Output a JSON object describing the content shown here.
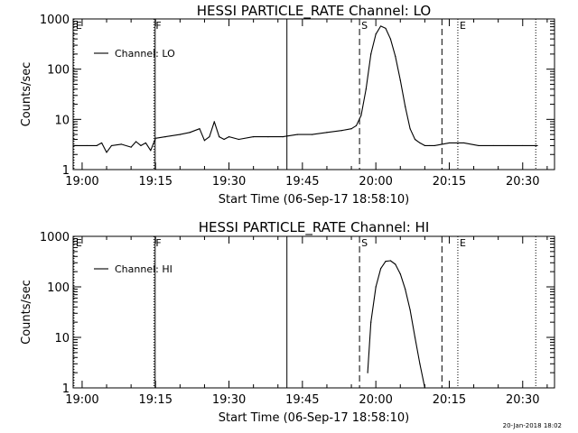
{
  "footer_timestamp": "20-Jan-2018 18:02",
  "chart_data": [
    {
      "type": "line",
      "title": "HESSI PARTICLE_RATE Channel: LO",
      "xlabel": "Start Time (06-Sep-17 18:58:10)",
      "ylabel": "Counts/sec",
      "y_scale": "log",
      "ylim": [
        1,
        1000
      ],
      "xlim": [
        "18:58:10",
        "20:36:30"
      ],
      "x_ticks": [
        "19:00",
        "19:15",
        "19:30",
        "19:45",
        "20:00",
        "20:15",
        "20:30"
      ],
      "y_ticks": [
        "1",
        "10",
        "100",
        "1000"
      ],
      "grid": false,
      "legend": {
        "position": "top-left",
        "entries": [
          "Channel: LO"
        ]
      },
      "markers": [
        {
          "label": "E",
          "time": "18:58:20",
          "style": "dotted"
        },
        {
          "label": "F",
          "time": "19:14:40",
          "style": "dotted"
        },
        {
          "label": "",
          "time": "19:14:55",
          "style": "solid"
        },
        {
          "label": "",
          "time": "19:41:50",
          "style": "solid"
        },
        {
          "label": "S",
          "time": "19:56:40",
          "style": "dashed"
        },
        {
          "label": "",
          "time": "20:13:30",
          "style": "dashed"
        },
        {
          "label": "E",
          "time": "20:16:45",
          "style": "dotted"
        },
        {
          "label": "",
          "time": "20:32:40",
          "style": "dotted"
        }
      ],
      "series": [
        {
          "name": "Channel: LO",
          "x": [
            "18:58:30",
            "19:01:00",
            "19:03:00",
            "19:04:00",
            "19:05:00",
            "19:06:00",
            "19:08:00",
            "19:10:00",
            "19:11:00",
            "19:12:00",
            "19:13:00",
            "19:14:00",
            "19:15:00",
            "19:17:00",
            "19:20:00",
            "19:22:00",
            "19:24:00",
            "19:25:00",
            "19:26:00",
            "19:27:00",
            "19:28:00",
            "19:29:00",
            "19:30:00",
            "19:32:00",
            "19:35:00",
            "19:38:00",
            "19:41:00",
            "19:44:00",
            "19:47:00",
            "19:50:00",
            "19:53:00",
            "19:55:00",
            "19:56:00",
            "19:57:00",
            "19:58:00",
            "19:59:00",
            "20:00:00",
            "20:01:00",
            "20:02:00",
            "20:03:00",
            "20:04:00",
            "20:05:00",
            "20:06:00",
            "20:07:00",
            "20:08:00",
            "20:09:00",
            "20:10:00",
            "20:11:00",
            "20:12:00",
            "20:15:00",
            "20:18:00",
            "20:21:00",
            "20:24:00",
            "20:27:00",
            "20:30:00",
            "20:33:00"
          ],
          "y": [
            3.0,
            3.0,
            3.0,
            3.4,
            2.2,
            3.0,
            3.2,
            2.8,
            3.6,
            3.0,
            3.4,
            2.4,
            4.2,
            4.5,
            5.0,
            5.5,
            6.5,
            3.8,
            4.5,
            9.0,
            4.5,
            4.0,
            4.5,
            4.0,
            4.5,
            4.5,
            4.5,
            5.0,
            5.0,
            5.5,
            6.0,
            6.5,
            7.5,
            12,
            40,
            200,
            500,
            720,
            650,
            400,
            180,
            60,
            18,
            6.5,
            4.0,
            3.4,
            3.0,
            3.0,
            3.0,
            3.4,
            3.4,
            3.0,
            3.0,
            3.0,
            3.0,
            3.0
          ]
        }
      ]
    },
    {
      "type": "line",
      "title": "HESSI PARTICLE_RATE Channel: HI",
      "xlabel": "Start Time (06-Sep-17 18:58:10)",
      "ylabel": "Counts/sec",
      "y_scale": "log",
      "ylim": [
        1,
        1000
      ],
      "xlim": [
        "18:58:10",
        "20:36:30"
      ],
      "x_ticks": [
        "19:00",
        "19:15",
        "19:30",
        "19:45",
        "20:00",
        "20:15",
        "20:30"
      ],
      "y_ticks": [
        "1",
        "10",
        "100",
        "1000"
      ],
      "grid": false,
      "legend": {
        "position": "top-left",
        "entries": [
          "Channel: HI"
        ]
      },
      "markers": [
        {
          "label": "E",
          "time": "18:58:20",
          "style": "dotted"
        },
        {
          "label": "F",
          "time": "19:14:40",
          "style": "dotted"
        },
        {
          "label": "",
          "time": "19:14:55",
          "style": "solid"
        },
        {
          "label": "",
          "time": "19:41:50",
          "style": "solid"
        },
        {
          "label": "S",
          "time": "19:56:40",
          "style": "dashed"
        },
        {
          "label": "",
          "time": "20:13:30",
          "style": "dashed"
        },
        {
          "label": "E",
          "time": "20:16:45",
          "style": "dotted"
        },
        {
          "label": "",
          "time": "20:32:40",
          "style": "dotted"
        }
      ],
      "series": [
        {
          "name": "Channel: HI",
          "x": [
            "19:58:20",
            "19:59:00",
            "20:00:00",
            "20:01:00",
            "20:02:00",
            "20:03:00",
            "20:04:00",
            "20:05:00",
            "20:06:00",
            "20:07:00",
            "20:08:00",
            "20:09:00",
            "20:10:00"
          ],
          "y": [
            2.0,
            20,
            100,
            230,
            320,
            330,
            280,
            180,
            90,
            35,
            10,
            3.0,
            1.0
          ]
        }
      ]
    }
  ]
}
